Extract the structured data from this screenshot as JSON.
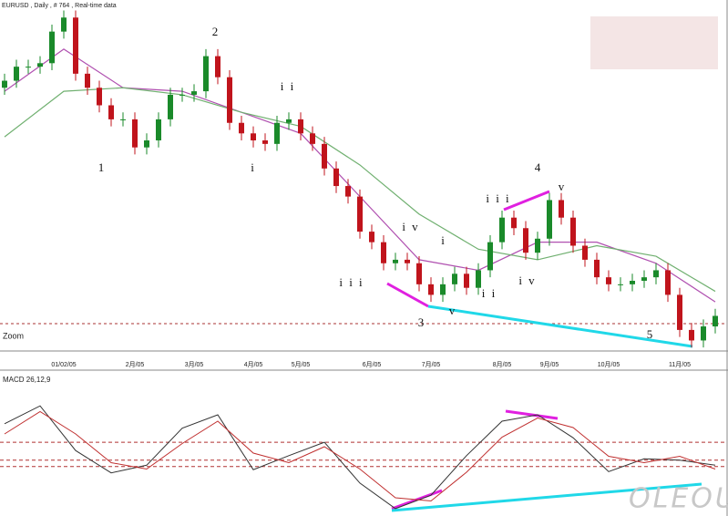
{
  "chart_data": [
    {
      "type": "candlestick",
      "title": "EURUSD , Daily , # 764 , Real-time data",
      "categories": [
        null,
        null,
        null,
        null,
        null,
        "01/02/05",
        null,
        null,
        null,
        null,
        null,
        "2月/05",
        null,
        null,
        null,
        null,
        "3月/05",
        null,
        null,
        null,
        null,
        "4月/05",
        null,
        null,
        null,
        "5月/05",
        null,
        null,
        null,
        null,
        null,
        "6月/05",
        null,
        null,
        null,
        null,
        "7月/05",
        null,
        null,
        null,
        null,
        null,
        "8月/05",
        null,
        null,
        null,
        "9月/05",
        null,
        null,
        null,
        null,
        "10月/05",
        null,
        null,
        null,
        null,
        null,
        "11月/05",
        null,
        null,
        null
      ],
      "open": [
        75,
        77,
        81,
        81,
        82,
        91,
        95,
        79,
        75,
        70,
        66,
        66,
        58,
        60,
        66,
        73,
        73,
        74,
        84,
        78,
        65,
        62,
        60,
        59,
        65,
        66,
        62,
        59,
        52,
        47,
        44,
        34,
        31,
        25,
        26,
        25,
        19,
        16,
        19,
        22,
        18,
        23,
        31,
        38,
        35,
        28,
        32,
        43,
        38,
        30,
        26,
        21,
        19,
        19,
        20,
        21,
        23,
        16,
        6,
        3,
        7
      ],
      "high": [
        79,
        83,
        83,
        84,
        93,
        97,
        97,
        81,
        77,
        72,
        68,
        68,
        62,
        68,
        75,
        75,
        76,
        86,
        86,
        80,
        67,
        64,
        62,
        67,
        68,
        68,
        64,
        61,
        54,
        49,
        46,
        36,
        33,
        28,
        28,
        27,
        21,
        21,
        24,
        24,
        25,
        33,
        40,
        40,
        37,
        34,
        45,
        45,
        40,
        32,
        28,
        23,
        21,
        22,
        23,
        25,
        25,
        18,
        8,
        9,
        12
      ],
      "low": [
        73,
        75,
        79,
        79,
        80,
        89,
        77,
        73,
        68,
        64,
        64,
        56,
        56,
        58,
        64,
        71,
        71,
        72,
        76,
        63,
        60,
        58,
        57,
        57,
        63,
        60,
        57,
        50,
        45,
        42,
        32,
        29,
        23,
        23,
        23,
        17,
        14,
        14,
        17,
        16,
        16,
        21,
        29,
        33,
        26,
        26,
        30,
        36,
        28,
        24,
        19,
        17,
        17,
        17,
        18,
        19,
        14,
        4,
        1,
        1,
        5
      ],
      "close": [
        77,
        81,
        81,
        82,
        91,
        95,
        79,
        75,
        70,
        66,
        66,
        58,
        60,
        66,
        73,
        73,
        74,
        84,
        78,
        65,
        62,
        60,
        59,
        65,
        66,
        62,
        59,
        52,
        47,
        44,
        34,
        31,
        25,
        26,
        25,
        19,
        16,
        19,
        22,
        18,
        23,
        31,
        38,
        35,
        28,
        32,
        43,
        38,
        30,
        26,
        21,
        19,
        19,
        20,
        21,
        23,
        16,
        6,
        3,
        7,
        10
      ],
      "up_color": "#1a8a2a",
      "down_color": "#c0141c",
      "ylim": [
        0,
        100
      ],
      "overlays": [
        {
          "color": "#b050b0",
          "x": [
            0,
            5,
            10,
            15,
            20,
            25,
            30,
            35,
            40,
            45,
            50,
            55,
            60
          ],
          "values": [
            74,
            86,
            75,
            74,
            68,
            62,
            44,
            26,
            23,
            31,
            31,
            25,
            14
          ]
        },
        {
          "color": "#70b070",
          "x": [
            0,
            5,
            10,
            15,
            20,
            25,
            30,
            35,
            40,
            45,
            50,
            55,
            60
          ],
          "values": [
            61,
            74,
            75,
            73,
            68,
            64,
            53,
            39,
            29,
            26,
            30,
            27,
            17
          ]
        }
      ],
      "annotations": [
        "1",
        "2",
        "i",
        "i i",
        "i i i",
        "i v",
        "3",
        "v",
        "i",
        "i i",
        "i i i",
        "4",
        "v",
        "i v",
        "5"
      ],
      "zoom_label": "Zoom"
    },
    {
      "type": "line",
      "title": "MACD 26,12,9",
      "x": [
        0,
        3,
        6,
        9,
        12,
        15,
        18,
        21,
        24,
        27,
        30,
        33,
        36,
        39,
        42,
        45,
        48,
        51,
        54,
        57,
        60
      ],
      "series": [
        {
          "color": "#333333",
          "values": [
            3.6,
            6.4,
            -0.6,
            -4.1,
            -2.9,
            2.9,
            5.0,
            -3.6,
            -1.4,
            0.7,
            -5.7,
            -9.7,
            -7.6,
            -1.4,
            4.0,
            5.0,
            1.4,
            -3.9,
            -1.9,
            -2.1,
            -2.9
          ]
        },
        {
          "color": "#c03030",
          "values": [
            2.0,
            5.5,
            2.0,
            -2.5,
            -3.5,
            0.5,
            4.0,
            -1.0,
            -2.5,
            0.0,
            -3.5,
            -8.0,
            -8.5,
            -4.0,
            1.5,
            4.5,
            3.0,
            -1.5,
            -2.5,
            -1.5,
            -3.5
          ]
        }
      ],
      "reference_lines": [
        0.7,
        -2.1,
        -3.1
      ],
      "ylim": [
        -10,
        10
      ],
      "watermark": "OLEOU"
    }
  ]
}
